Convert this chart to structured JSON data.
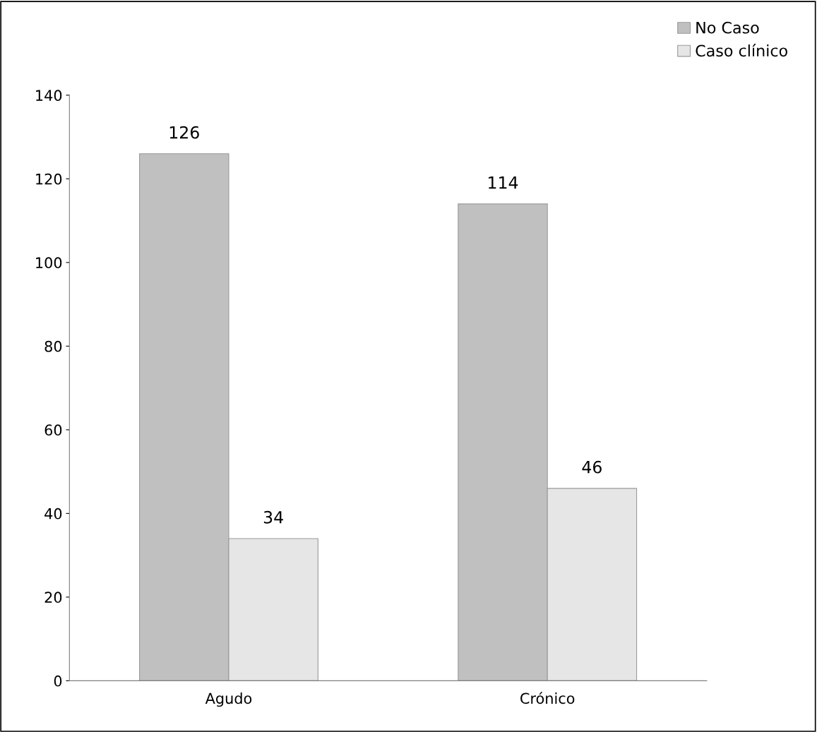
{
  "chart_data": {
    "type": "bar",
    "categories": [
      "Agudo",
      "Crónico"
    ],
    "series": [
      {
        "name": "No Caso",
        "color": "#c0c0c0",
        "values": [
          126,
          114
        ]
      },
      {
        "name": "Caso clínico",
        "color": "#e6e6e6",
        "values": [
          34,
          46
        ]
      }
    ],
    "ylim": [
      0,
      140
    ],
    "yticks": [
      0,
      20,
      40,
      60,
      80,
      100,
      120,
      140
    ],
    "data_labels": true,
    "grid": false,
    "legend": "top right"
  }
}
